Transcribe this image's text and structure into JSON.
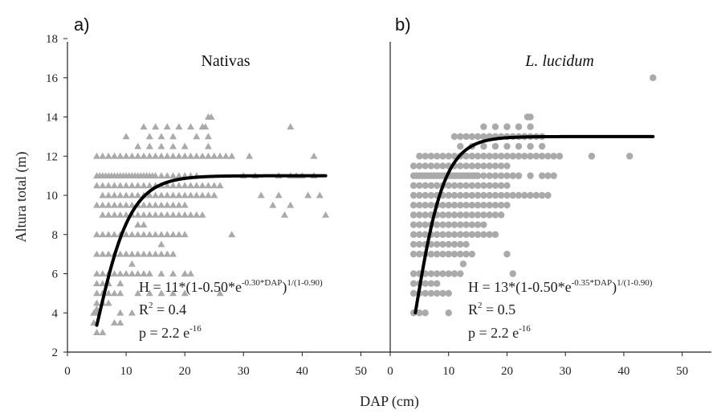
{
  "figure": {
    "shared_xlabel": "DAP (cm)",
    "shared_ylabel": "Altura total (m)"
  },
  "chart_data": [
    {
      "type": "scatter",
      "panel_label": "a)",
      "title": "Nativas",
      "title_italic": false,
      "xlabel": "DAP (cm)",
      "ylabel": "Altura total (m)",
      "xlim": [
        0,
        55
      ],
      "ylim": [
        2,
        18
      ],
      "xticks": [
        0,
        10,
        20,
        30,
        40,
        50
      ],
      "yticks": [
        2,
        4,
        6,
        8,
        10,
        12,
        14,
        16,
        18
      ],
      "marker": "triangle",
      "marker_color": "#aaaaaa",
      "curve_color": "#000000",
      "curve": {
        "a": 11,
        "b": 0.5,
        "k": 0.3,
        "m": 0.9,
        "x_start": 5,
        "x_end": 44
      },
      "equation": {
        "main": "H = 11*(1-0.50*e",
        "exp1": "-0.30*DAP",
        "mid": ")",
        "exp2": "1/(1-0.90)"
      },
      "r2": {
        "base": "R",
        "sup": "2",
        "rest": " = 0.4"
      },
      "p": {
        "base": "p = 2.2 e",
        "sup": "-16"
      },
      "series": [
        {
          "x": [
            5,
            5.5,
            6,
            6.5,
            7,
            7.5,
            8,
            8.5,
            9,
            9.5,
            10,
            10.5,
            11,
            11.5,
            12,
            12.5,
            13,
            13.5,
            14,
            14.5,
            15,
            16,
            17,
            18,
            19,
            20,
            21,
            22,
            5,
            6,
            7,
            8,
            9,
            10,
            11,
            12,
            13,
            14,
            15,
            16,
            17,
            18,
            19,
            20,
            21,
            22,
            23,
            24,
            25,
            26,
            27,
            28,
            6,
            7,
            8,
            9,
            10,
            11,
            12,
            13,
            14,
            15,
            16,
            17,
            18,
            19,
            20,
            21,
            22,
            23,
            24,
            25,
            5,
            6,
            7,
            8,
            9,
            10,
            11,
            12,
            13,
            14,
            15,
            16,
            17,
            18,
            19,
            20,
            21,
            22,
            23,
            24,
            25,
            26,
            6,
            7,
            8,
            9,
            10,
            11,
            12,
            13,
            14,
            15,
            16,
            17,
            18,
            19,
            20,
            21,
            22,
            23,
            5,
            6,
            7,
            8,
            9,
            10,
            11,
            12,
            13,
            14,
            15,
            16,
            17,
            18,
            19,
            20,
            5,
            6,
            7,
            8,
            9,
            10,
            11,
            12,
            13,
            14,
            15,
            16,
            17,
            18,
            5,
            6,
            7,
            8,
            9,
            10,
            11,
            12,
            13,
            14,
            15,
            16,
            17,
            18,
            19,
            20,
            5,
            6,
            7,
            8,
            9,
            10,
            11,
            12,
            13,
            14,
            16,
            18,
            20,
            5,
            6,
            7,
            8,
            9,
            12,
            14,
            16,
            18,
            20,
            4.5,
            5,
            6,
            7,
            9,
            11,
            5,
            6,
            7,
            9,
            4.5,
            5,
            6,
            4.5,
            5,
            10,
            14,
            16,
            18,
            22,
            24,
            12,
            14,
            16,
            18,
            20,
            24,
            13,
            15,
            17,
            19,
            21,
            23,
            24.5,
            30,
            36,
            38,
            39,
            40,
            42,
            44,
            33,
            36,
            41,
            32,
            35,
            37,
            38,
            42,
            43,
            36,
            24,
            23.5,
            38,
            31,
            28,
            16,
            20,
            21,
            26,
            10,
            11,
            12,
            13,
            5,
            6,
            8,
            9
          ],
          "y": [
            11,
            11,
            11,
            11,
            11,
            11,
            11,
            11,
            11,
            11,
            11,
            11,
            11,
            11,
            11,
            11,
            11,
            11,
            11,
            11,
            11,
            11,
            11,
            11,
            11,
            11,
            11,
            11,
            12,
            12,
            12,
            12,
            12,
            12,
            12,
            12,
            12,
            12,
            12,
            12,
            12,
            12,
            12,
            12,
            12,
            12,
            12,
            12,
            12,
            12,
            12,
            12,
            10,
            10,
            10,
            10,
            10,
            10,
            10,
            10,
            10,
            10,
            10,
            10,
            10,
            10,
            10,
            10,
            10,
            10,
            10,
            10,
            10.5,
            10.5,
            10.5,
            10.5,
            10.5,
            10.5,
            10.5,
            10.5,
            10.5,
            10.5,
            10.5,
            10.5,
            10.5,
            10.5,
            10.5,
            10.5,
            10.5,
            10.5,
            10.5,
            10.5,
            10.5,
            10.5,
            9,
            9,
            9,
            9,
            9,
            9,
            9,
            9,
            9,
            9,
            9,
            9,
            9,
            9,
            9,
            9,
            9,
            9,
            8,
            8,
            8,
            8,
            8,
            8,
            8,
            8,
            8,
            8,
            8,
            8,
            8,
            8,
            8,
            8,
            7,
            7,
            7,
            7,
            7,
            7,
            7,
            7,
            7,
            7,
            7,
            7,
            7,
            7,
            9.5,
            9.5,
            9.5,
            9.5,
            9.5,
            9.5,
            9.5,
            9.5,
            9.5,
            9.5,
            9.5,
            9.5,
            9.5,
            9.5,
            9.5,
            9.5,
            6,
            6,
            6,
            6,
            6,
            6,
            6,
            6,
            6,
            6,
            6,
            6,
            6,
            5,
            5,
            5,
            5,
            5,
            5,
            5,
            5,
            5,
            5,
            4,
            4.5,
            4.5,
            4.5,
            4,
            4,
            5.5,
            5.5,
            5.5,
            5.5,
            4,
            4.2,
            4.5,
            3.5,
            4,
            13,
            13,
            13,
            13,
            13,
            13,
            12.5,
            12.5,
            12.5,
            12.5,
            12.5,
            12.5,
            13.5,
            13.5,
            13.5,
            13.5,
            13.5,
            13.5,
            14,
            11,
            11,
            11,
            11,
            11,
            11,
            9,
            10,
            10,
            10,
            11,
            9.5,
            9,
            9.5,
            12,
            10,
            11,
            14,
            13.5,
            13.5,
            12,
            8,
            7.5,
            6,
            6,
            5,
            7,
            6.5,
            8.5,
            8.5,
            3,
            3,
            3.5,
            3.5
          ]
        }
      ]
    },
    {
      "type": "scatter",
      "panel_label": "b)",
      "title": "L. lucidum",
      "title_italic": true,
      "xlabel": "DAP (cm)",
      "ylabel": "",
      "xlim": [
        0,
        55
      ],
      "ylim": [
        2,
        18
      ],
      "xticks": [
        0,
        10,
        20,
        30,
        40,
        50
      ],
      "yticks": [],
      "marker": "circle",
      "marker_color": "#aaaaaa",
      "curve_color": "#000000",
      "curve": {
        "a": 13,
        "b": 0.5,
        "k": 0.35,
        "m": 0.9,
        "x_start": 4.3,
        "x_end": 45
      },
      "equation": {
        "main": "H = 13*(1-0.50*e",
        "exp1": "-0.35*DAP",
        "mid": ")",
        "exp2": "1/(1-0.90)"
      },
      "r2": {
        "base": "R",
        "sup": "2",
        "rest": " = 0.5"
      },
      "p": {
        "base": "p = 2.2 e",
        "sup": "-16"
      },
      "series": [
        {
          "x": [
            4,
            4.5,
            5,
            5.5,
            6,
            6.5,
            7,
            7.5,
            8,
            8.5,
            9,
            9.5,
            10,
            10.5,
            11,
            11.5,
            12,
            12.5,
            13,
            13.5,
            14,
            14.5,
            15,
            16,
            17,
            18,
            19,
            20,
            21,
            22,
            4,
            5,
            6,
            7,
            8,
            9,
            10,
            11,
            12,
            13,
            14,
            15,
            16,
            17,
            18,
            19,
            20,
            21,
            22,
            23,
            24,
            25,
            26,
            27,
            5,
            6,
            7,
            8,
            9,
            10,
            11,
            12,
            13,
            14,
            15,
            16,
            17,
            18,
            19,
            20,
            21,
            22,
            23,
            24,
            25,
            26,
            27,
            28,
            29,
            4,
            5,
            6,
            7,
            8,
            9,
            10,
            11,
            12,
            13,
            14,
            15,
            16,
            17,
            18,
            19,
            20,
            4,
            5,
            6,
            7,
            8,
            9,
            10,
            11,
            12,
            13,
            14,
            15,
            16,
            17,
            18,
            19,
            4,
            5,
            6,
            7,
            8,
            9,
            10,
            11,
            12,
            13,
            14,
            15,
            16,
            17,
            18,
            19,
            20,
            4,
            5,
            6,
            7,
            8,
            9,
            10,
            11,
            12,
            13,
            14,
            15,
            16,
            17,
            18,
            19,
            20,
            4,
            5,
            6,
            7,
            8,
            9,
            10,
            11,
            12,
            13,
            14,
            15,
            16,
            17,
            18,
            4,
            5,
            6,
            7,
            8,
            9,
            10,
            11,
            12,
            13,
            14,
            15,
            16,
            4,
            5,
            6,
            7,
            8,
            9,
            10,
            11,
            12,
            13,
            14,
            4,
            5,
            6,
            7,
            8,
            9,
            10,
            11,
            12,
            4,
            5,
            6,
            7,
            8,
            9,
            10,
            11,
            12,
            13,
            4,
            5,
            6,
            7,
            8,
            9,
            10,
            4,
            5,
            6,
            7,
            8,
            4,
            5,
            6,
            11,
            12,
            13,
            14,
            15,
            16,
            17,
            18,
            19,
            20,
            21,
            22,
            23,
            24,
            25,
            26,
            12,
            14,
            16,
            18,
            20,
            22,
            24,
            26,
            16,
            18,
            20,
            22,
            24,
            17,
            20,
            23,
            24,
            22,
            23.5,
            34.5,
            41,
            45,
            20,
            21,
            10,
            26,
            27,
            24,
            28,
            11,
            12.5
          ],
          "y": [
            11,
            11,
            11,
            11,
            11,
            11,
            11,
            11,
            11,
            11,
            11,
            11,
            11,
            11,
            11,
            11,
            11,
            11,
            11,
            11,
            11,
            11,
            11,
            11,
            11,
            11,
            11,
            11,
            11,
            11,
            10,
            10,
            10,
            10,
            10,
            10,
            10,
            10,
            10,
            10,
            10,
            10,
            10,
            10,
            10,
            10,
            10,
            10,
            10,
            10,
            10,
            10,
            10,
            10,
            12,
            12,
            12,
            12,
            12,
            12,
            12,
            12,
            12,
            12,
            12,
            12,
            12,
            12,
            12,
            12,
            12,
            12,
            12,
            12,
            12,
            12,
            12,
            12,
            12,
            9.5,
            9.5,
            9.5,
            9.5,
            9.5,
            9.5,
            9.5,
            9.5,
            9.5,
            9.5,
            9.5,
            9.5,
            9.5,
            9.5,
            9.5,
            9.5,
            9.5,
            9,
            9,
            9,
            9,
            9,
            9,
            9,
            9,
            9,
            9,
            9,
            9,
            9,
            9,
            9,
            9,
            10.5,
            10.5,
            10.5,
            10.5,
            10.5,
            10.5,
            10.5,
            10.5,
            10.5,
            10.5,
            10.5,
            10.5,
            10.5,
            10.5,
            10.5,
            10.5,
            10.5,
            11.5,
            11.5,
            11.5,
            11.5,
            11.5,
            11.5,
            11.5,
            11.5,
            11.5,
            11.5,
            11.5,
            11.5,
            11.5,
            11.5,
            11.5,
            11.5,
            11.5,
            8,
            8,
            8,
            8,
            8,
            8,
            8,
            8,
            8,
            8,
            8,
            8,
            8,
            8,
            8,
            8.5,
            8.5,
            8.5,
            8.5,
            8.5,
            8.5,
            8.5,
            8.5,
            8.5,
            8.5,
            8.5,
            8.5,
            8.5,
            7,
            7,
            7,
            7,
            7,
            7,
            7,
            7,
            7,
            7,
            7,
            6,
            6,
            6,
            6,
            6,
            6,
            6,
            6,
            6,
            7.5,
            7.5,
            7.5,
            7.5,
            7.5,
            7.5,
            7.5,
            7.5,
            7.5,
            7.5,
            5,
            5,
            5,
            5,
            5,
            5,
            5,
            5.5,
            5.5,
            5.5,
            5.5,
            5.5,
            4,
            4,
            4,
            13,
            13,
            13,
            13,
            13,
            13,
            13,
            13,
            13,
            13,
            13,
            13,
            13,
            13,
            13,
            13,
            12.5,
            12.5,
            12.5,
            12.5,
            12.5,
            12.5,
            12.5,
            12.5,
            13.5,
            13.5,
            13.5,
            13.5,
            13.5,
            13,
            13.5,
            13,
            14,
            13.5,
            14,
            12,
            12,
            16,
            7,
            6,
            4,
            11,
            11,
            11,
            11,
            6,
            6.5
          ]
        }
      ]
    }
  ]
}
